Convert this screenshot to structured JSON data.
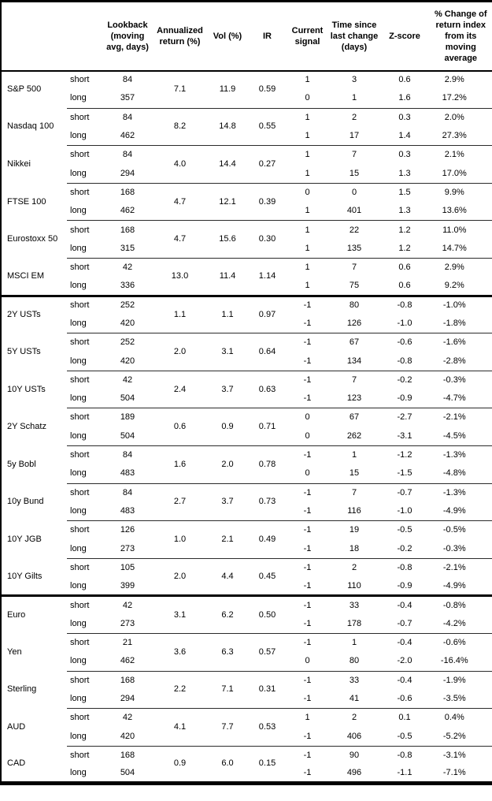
{
  "colors": {
    "border": "#000000",
    "text": "#000000",
    "background": "#ffffff"
  },
  "table": {
    "header": {
      "columns": [
        "",
        "",
        "Lookback\n(moving\navg, days)",
        "Annualized\nreturn (%)",
        "Vol (%)",
        "IR",
        "Current\nsignal",
        "Time since\nlast change\n(days)",
        "Z-score",
        "% Change of\nreturn index\nfrom its\nmoving\naverage"
      ]
    },
    "sections": [
      {
        "assets": [
          {
            "name": "S&P 500",
            "annualized_return": "7.1",
            "vol": "11.9",
            "ir": "0.59",
            "rows": [
              {
                "horizon": "short",
                "lookback": "84",
                "signal": "1",
                "time_since_change": "3",
                "zscore": "0.6",
                "pct_change": "2.9%"
              },
              {
                "horizon": "long",
                "lookback": "357",
                "signal": "0",
                "time_since_change": "1",
                "zscore": "1.6",
                "pct_change": "17.2%"
              }
            ]
          },
          {
            "name": "Nasdaq 100",
            "annualized_return": "8.2",
            "vol": "14.8",
            "ir": "0.55",
            "rows": [
              {
                "horizon": "short",
                "lookback": "84",
                "signal": "1",
                "time_since_change": "2",
                "zscore": "0.3",
                "pct_change": "2.0%"
              },
              {
                "horizon": "long",
                "lookback": "462",
                "signal": "1",
                "time_since_change": "17",
                "zscore": "1.4",
                "pct_change": "27.3%"
              }
            ]
          },
          {
            "name": "Nikkei",
            "annualized_return": "4.0",
            "vol": "14.4",
            "ir": "0.27",
            "rows": [
              {
                "horizon": "short",
                "lookback": "84",
                "signal": "1",
                "time_since_change": "7",
                "zscore": "0.3",
                "pct_change": "2.1%"
              },
              {
                "horizon": "long",
                "lookback": "294",
                "signal": "1",
                "time_since_change": "15",
                "zscore": "1.3",
                "pct_change": "17.0%"
              }
            ]
          },
          {
            "name": "FTSE 100",
            "annualized_return": "4.7",
            "vol": "12.1",
            "ir": "0.39",
            "rows": [
              {
                "horizon": "short",
                "lookback": "168",
                "signal": "0",
                "time_since_change": "0",
                "zscore": "1.5",
                "pct_change": "9.9%"
              },
              {
                "horizon": "long",
                "lookback": "462",
                "signal": "1",
                "time_since_change": "401",
                "zscore": "1.3",
                "pct_change": "13.6%"
              }
            ]
          },
          {
            "name": "Eurostoxx 50",
            "annualized_return": "4.7",
            "vol": "15.6",
            "ir": "0.30",
            "rows": [
              {
                "horizon": "short",
                "lookback": "168",
                "signal": "1",
                "time_since_change": "22",
                "zscore": "1.2",
                "pct_change": "11.0%"
              },
              {
                "horizon": "long",
                "lookback": "315",
                "signal": "1",
                "time_since_change": "135",
                "zscore": "1.2",
                "pct_change": "14.7%"
              }
            ]
          },
          {
            "name": "MSCI EM",
            "annualized_return": "13.0",
            "vol": "11.4",
            "ir": "1.14",
            "rows": [
              {
                "horizon": "short",
                "lookback": "42",
                "signal": "1",
                "time_since_change": "7",
                "zscore": "0.6",
                "pct_change": "2.9%"
              },
              {
                "horizon": "long",
                "lookback": "336",
                "signal": "1",
                "time_since_change": "75",
                "zscore": "0.6",
                "pct_change": "9.2%"
              }
            ]
          }
        ]
      },
      {
        "assets": [
          {
            "name": "2Y USTs",
            "annualized_return": "1.1",
            "vol": "1.1",
            "ir": "0.97",
            "rows": [
              {
                "horizon": "short",
                "lookback": "252",
                "signal": "-1",
                "time_since_change": "80",
                "zscore": "-0.8",
                "pct_change": "-1.0%"
              },
              {
                "horizon": "long",
                "lookback": "420",
                "signal": "-1",
                "time_since_change": "126",
                "zscore": "-1.0",
                "pct_change": "-1.8%"
              }
            ]
          },
          {
            "name": "5Y USTs",
            "annualized_return": "2.0",
            "vol": "3.1",
            "ir": "0.64",
            "rows": [
              {
                "horizon": "short",
                "lookback": "252",
                "signal": "-1",
                "time_since_change": "67",
                "zscore": "-0.6",
                "pct_change": "-1.6%"
              },
              {
                "horizon": "long",
                "lookback": "420",
                "signal": "-1",
                "time_since_change": "134",
                "zscore": "-0.8",
                "pct_change": "-2.8%"
              }
            ]
          },
          {
            "name": "10Y USTs",
            "annualized_return": "2.4",
            "vol": "3.7",
            "ir": "0.63",
            "rows": [
              {
                "horizon": "short",
                "lookback": "42",
                "signal": "-1",
                "time_since_change": "7",
                "zscore": "-0.2",
                "pct_change": "-0.3%"
              },
              {
                "horizon": "long",
                "lookback": "504",
                "signal": "-1",
                "time_since_change": "123",
                "zscore": "-0.9",
                "pct_change": "-4.7%"
              }
            ]
          },
          {
            "name": "2Y Schatz",
            "annualized_return": "0.6",
            "vol": "0.9",
            "ir": "0.71",
            "rows": [
              {
                "horizon": "short",
                "lookback": "189",
                "signal": "0",
                "time_since_change": "67",
                "zscore": "-2.7",
                "pct_change": "-2.1%"
              },
              {
                "horizon": "long",
                "lookback": "504",
                "signal": "0",
                "time_since_change": "262",
                "zscore": "-3.1",
                "pct_change": "-4.5%"
              }
            ]
          },
          {
            "name": "5y Bobl",
            "annualized_return": "1.6",
            "vol": "2.0",
            "ir": "0.78",
            "rows": [
              {
                "horizon": "short",
                "lookback": "84",
                "signal": "-1",
                "time_since_change": "1",
                "zscore": "-1.2",
                "pct_change": "-1.3%"
              },
              {
                "horizon": "long",
                "lookback": "483",
                "signal": "0",
                "time_since_change": "15",
                "zscore": "-1.5",
                "pct_change": "-4.8%"
              }
            ]
          },
          {
            "name": "10y Bund",
            "annualized_return": "2.7",
            "vol": "3.7",
            "ir": "0.73",
            "rows": [
              {
                "horizon": "short",
                "lookback": "84",
                "signal": "-1",
                "time_since_change": "7",
                "zscore": "-0.7",
                "pct_change": "-1.3%"
              },
              {
                "horizon": "long",
                "lookback": "483",
                "signal": "-1",
                "time_since_change": "116",
                "zscore": "-1.0",
                "pct_change": "-4.9%"
              }
            ]
          },
          {
            "name": "10Y JGB",
            "annualized_return": "1.0",
            "vol": "2.1",
            "ir": "0.49",
            "rows": [
              {
                "horizon": "short",
                "lookback": "126",
                "signal": "-1",
                "time_since_change": "19",
                "zscore": "-0.5",
                "pct_change": "-0.5%"
              },
              {
                "horizon": "long",
                "lookback": "273",
                "signal": "-1",
                "time_since_change": "18",
                "zscore": "-0.2",
                "pct_change": "-0.3%"
              }
            ]
          },
          {
            "name": "10Y Gilts",
            "annualized_return": "2.0",
            "vol": "4.4",
            "ir": "0.45",
            "rows": [
              {
                "horizon": "short",
                "lookback": "105",
                "signal": "-1",
                "time_since_change": "2",
                "zscore": "-0.8",
                "pct_change": "-2.1%"
              },
              {
                "horizon": "long",
                "lookback": "399",
                "signal": "-1",
                "time_since_change": "110",
                "zscore": "-0.9",
                "pct_change": "-4.9%"
              }
            ]
          }
        ]
      },
      {
        "assets": [
          {
            "name": "Euro",
            "annualized_return": "3.1",
            "vol": "6.2",
            "ir": "0.50",
            "rows": [
              {
                "horizon": "short",
                "lookback": "42",
                "signal": "-1",
                "time_since_change": "33",
                "zscore": "-0.4",
                "pct_change": "-0.8%"
              },
              {
                "horizon": "long",
                "lookback": "273",
                "signal": "-1",
                "time_since_change": "178",
                "zscore": "-0.7",
                "pct_change": "-4.2%"
              }
            ]
          },
          {
            "name": "Yen",
            "annualized_return": "3.6",
            "vol": "6.3",
            "ir": "0.57",
            "rows": [
              {
                "horizon": "short",
                "lookback": "21",
                "signal": "-1",
                "time_since_change": "1",
                "zscore": "-0.4",
                "pct_change": "-0.6%"
              },
              {
                "horizon": "long",
                "lookback": "462",
                "signal": "0",
                "time_since_change": "80",
                "zscore": "-2.0",
                "pct_change": "-16.4%"
              }
            ]
          },
          {
            "name": "Sterling",
            "annualized_return": "2.2",
            "vol": "7.1",
            "ir": "0.31",
            "rows": [
              {
                "horizon": "short",
                "lookback": "168",
                "signal": "-1",
                "time_since_change": "33",
                "zscore": "-0.4",
                "pct_change": "-1.9%"
              },
              {
                "horizon": "long",
                "lookback": "294",
                "signal": "-1",
                "time_since_change": "41",
                "zscore": "-0.6",
                "pct_change": "-3.5%"
              }
            ]
          },
          {
            "name": "AUD",
            "annualized_return": "4.1",
            "vol": "7.7",
            "ir": "0.53",
            "rows": [
              {
                "horizon": "short",
                "lookback": "42",
                "signal": "1",
                "time_since_change": "2",
                "zscore": "0.1",
                "pct_change": "0.4%"
              },
              {
                "horizon": "long",
                "lookback": "420",
                "signal": "-1",
                "time_since_change": "406",
                "zscore": "-0.5",
                "pct_change": "-5.2%"
              }
            ]
          },
          {
            "name": "CAD",
            "annualized_return": "0.9",
            "vol": "6.0",
            "ir": "0.15",
            "rows": [
              {
                "horizon": "short",
                "lookback": "168",
                "signal": "-1",
                "time_since_change": "90",
                "zscore": "-0.8",
                "pct_change": "-3.1%"
              },
              {
                "horizon": "long",
                "lookback": "504",
                "signal": "-1",
                "time_since_change": "496",
                "zscore": "-1.1",
                "pct_change": "-7.1%"
              }
            ]
          }
        ]
      }
    ]
  }
}
